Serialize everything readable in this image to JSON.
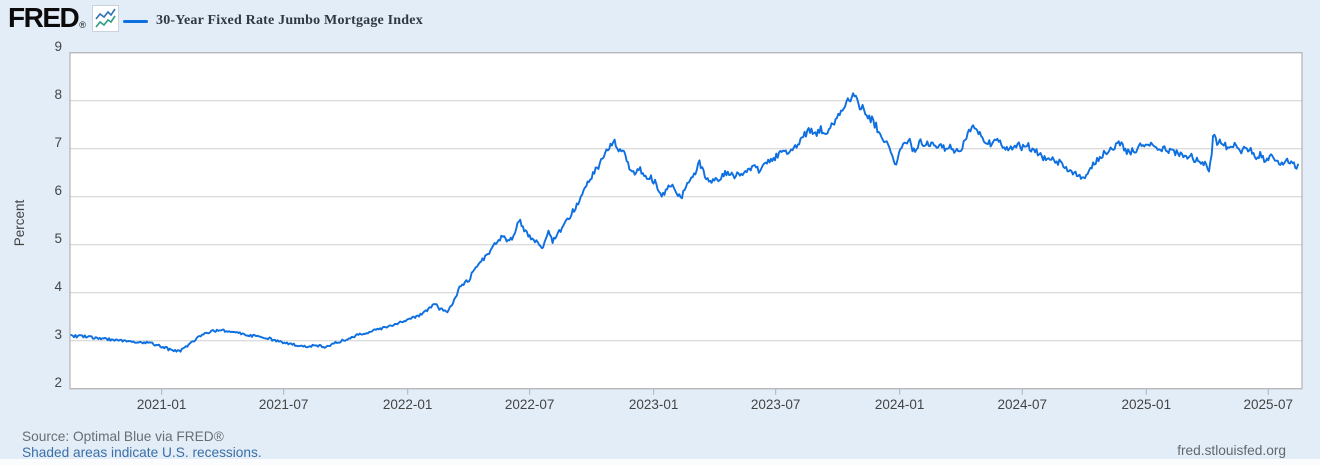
{
  "header": {
    "logo_text": "FRED",
    "logo_reg": "®",
    "legend_label": "30-Year Fixed Rate Jumbo Mortgage Index"
  },
  "footer": {
    "source": "Source: Optimal Blue via FRED®",
    "recession_note": "Shaded areas indicate U.S. recessions.",
    "site_link": "fred.stlouisfed.org"
  },
  "chart_data": {
    "type": "line",
    "title": "30-Year Fixed Rate Jumbo Mortgage Index",
    "ylabel": "Percent",
    "ylim": [
      2,
      9
    ],
    "yticks": [
      2,
      3,
      4,
      5,
      6,
      7,
      8,
      9
    ],
    "x_start": "2020-08-18",
    "x_end": "2025-08-20",
    "xticks": [
      "2021-01",
      "2021-07",
      "2022-01",
      "2022-07",
      "2023-01",
      "2023-07",
      "2024-01",
      "2024-07",
      "2025-01",
      "2025-07"
    ],
    "grid": "horizontal",
    "legend_position": "top-left",
    "colors": {
      "line": "#0e6fe0",
      "link": "#3a6fa8",
      "grid": "#cfcfcf",
      "frame": "#b3b3b3",
      "tick": "#a9bdd4",
      "logo_icon_blue": "#2e73b5",
      "logo_icon_green": "#2e9c86"
    },
    "series": [
      {
        "name": "30-Year Fixed Rate Jumbo Mortgage Index",
        "points": [
          [
            "2020-08-20",
            3.1
          ],
          [
            "2020-09-05",
            3.09
          ],
          [
            "2020-09-20",
            3.07
          ],
          [
            "2020-10-05",
            3.05
          ],
          [
            "2020-10-20",
            3.02
          ],
          [
            "2020-11-05",
            3.0
          ],
          [
            "2020-11-20",
            2.98
          ],
          [
            "2020-12-05",
            2.97
          ],
          [
            "2020-12-15",
            2.95
          ],
          [
            "2021-01-01",
            2.88
          ],
          [
            "2021-01-12",
            2.82
          ],
          [
            "2021-01-25",
            2.78
          ],
          [
            "2021-02-03",
            2.82
          ],
          [
            "2021-02-15",
            2.98
          ],
          [
            "2021-03-01",
            3.12
          ],
          [
            "2021-03-15",
            3.2
          ],
          [
            "2021-04-01",
            3.22
          ],
          [
            "2021-04-15",
            3.18
          ],
          [
            "2021-05-01",
            3.15
          ],
          [
            "2021-05-15",
            3.1
          ],
          [
            "2021-06-01",
            3.08
          ],
          [
            "2021-06-15",
            3.02
          ],
          [
            "2021-07-01",
            2.97
          ],
          [
            "2021-07-15",
            2.92
          ],
          [
            "2021-08-01",
            2.88
          ],
          [
            "2021-08-20",
            2.9
          ],
          [
            "2021-09-01",
            2.87
          ],
          [
            "2021-09-15",
            2.95
          ],
          [
            "2021-10-01",
            3.03
          ],
          [
            "2021-10-15",
            3.1
          ],
          [
            "2021-11-01",
            3.17
          ],
          [
            "2021-11-15",
            3.24
          ],
          [
            "2021-12-01",
            3.28
          ],
          [
            "2021-12-20",
            3.38
          ],
          [
            "2022-01-05",
            3.45
          ],
          [
            "2022-01-18",
            3.52
          ],
          [
            "2022-02-02",
            3.67
          ],
          [
            "2022-02-10",
            3.8
          ],
          [
            "2022-02-17",
            3.67
          ],
          [
            "2022-03-01",
            3.62
          ],
          [
            "2022-03-10",
            3.8
          ],
          [
            "2022-03-18",
            4.08
          ],
          [
            "2022-03-25",
            4.19
          ],
          [
            "2022-04-02",
            4.26
          ],
          [
            "2022-04-09",
            4.47
          ],
          [
            "2022-04-16",
            4.61
          ],
          [
            "2022-04-24",
            4.72
          ],
          [
            "2022-05-01",
            4.82
          ],
          [
            "2022-05-08",
            4.96
          ],
          [
            "2022-05-16",
            5.08
          ],
          [
            "2022-05-22",
            5.17
          ],
          [
            "2022-05-29",
            5.05
          ],
          [
            "2022-06-05",
            5.12
          ],
          [
            "2022-06-11",
            5.3
          ],
          [
            "2022-06-14",
            5.52
          ],
          [
            "2022-06-18",
            5.45
          ],
          [
            "2022-06-25",
            5.28
          ],
          [
            "2022-06-29",
            5.17
          ],
          [
            "2022-07-08",
            5.1
          ],
          [
            "2022-07-15",
            5.02
          ],
          [
            "2022-07-21",
            4.95
          ],
          [
            "2022-07-28",
            5.28
          ],
          [
            "2022-08-04",
            5.07
          ],
          [
            "2022-08-12",
            5.22
          ],
          [
            "2022-08-20",
            5.4
          ],
          [
            "2022-08-27",
            5.52
          ],
          [
            "2022-09-03",
            5.7
          ],
          [
            "2022-09-10",
            5.84
          ],
          [
            "2022-09-17",
            6.08
          ],
          [
            "2022-09-25",
            6.33
          ],
          [
            "2022-10-02",
            6.45
          ],
          [
            "2022-10-09",
            6.58
          ],
          [
            "2022-10-16",
            6.75
          ],
          [
            "2022-10-24",
            6.95
          ],
          [
            "2022-10-31",
            7.12
          ],
          [
            "2022-11-04",
            7.15
          ],
          [
            "2022-11-10",
            6.88
          ],
          [
            "2022-11-16",
            7.02
          ],
          [
            "2022-11-23",
            6.72
          ],
          [
            "2022-12-01",
            6.48
          ],
          [
            "2022-12-10",
            6.58
          ],
          [
            "2022-12-18",
            6.45
          ],
          [
            "2022-12-28",
            6.38
          ],
          [
            "2023-01-03",
            6.31
          ],
          [
            "2023-01-13",
            5.98
          ],
          [
            "2023-01-20",
            6.15
          ],
          [
            "2023-01-28",
            6.24
          ],
          [
            "2023-02-04",
            6.1
          ],
          [
            "2023-02-11",
            6.0
          ],
          [
            "2023-02-18",
            6.2
          ],
          [
            "2023-02-25",
            6.4
          ],
          [
            "2023-03-05",
            6.55
          ],
          [
            "2023-03-10",
            6.7
          ],
          [
            "2023-03-15",
            6.52
          ],
          [
            "2023-03-22",
            6.38
          ],
          [
            "2023-04-01",
            6.33
          ],
          [
            "2023-04-10",
            6.42
          ],
          [
            "2023-04-20",
            6.5
          ],
          [
            "2023-05-01",
            6.42
          ],
          [
            "2023-05-10",
            6.48
          ],
          [
            "2023-05-20",
            6.55
          ],
          [
            "2023-06-01",
            6.63
          ],
          [
            "2023-06-08",
            6.52
          ],
          [
            "2023-06-16",
            6.7
          ],
          [
            "2023-06-25",
            6.75
          ],
          [
            "2023-07-03",
            6.85
          ],
          [
            "2023-07-12",
            6.95
          ],
          [
            "2023-07-20",
            6.88
          ],
          [
            "2023-07-28",
            7.02
          ],
          [
            "2023-08-05",
            7.12
          ],
          [
            "2023-08-14",
            7.3
          ],
          [
            "2023-08-22",
            7.38
          ],
          [
            "2023-08-29",
            7.32
          ],
          [
            "2023-09-06",
            7.4
          ],
          [
            "2023-09-14",
            7.35
          ],
          [
            "2023-09-22",
            7.5
          ],
          [
            "2023-10-01",
            7.62
          ],
          [
            "2023-10-08",
            7.78
          ],
          [
            "2023-10-15",
            7.95
          ],
          [
            "2023-10-22",
            8.12
          ],
          [
            "2023-10-28",
            8.05
          ],
          [
            "2023-11-02",
            7.92
          ],
          [
            "2023-11-08",
            7.82
          ],
          [
            "2023-11-15",
            7.7
          ],
          [
            "2023-11-22",
            7.58
          ],
          [
            "2023-12-01",
            7.38
          ],
          [
            "2023-12-10",
            7.18
          ],
          [
            "2023-12-18",
            7.02
          ],
          [
            "2023-12-27",
            6.62
          ],
          [
            "2024-01-03",
            7.05
          ],
          [
            "2024-01-08",
            7.12
          ],
          [
            "2024-01-15",
            7.18
          ],
          [
            "2024-01-22",
            6.96
          ],
          [
            "2024-02-01",
            7.15
          ],
          [
            "2024-02-08",
            7.05
          ],
          [
            "2024-02-15",
            7.12
          ],
          [
            "2024-02-22",
            7.02
          ],
          [
            "2024-03-01",
            7.1
          ],
          [
            "2024-03-08",
            6.98
          ],
          [
            "2024-03-15",
            7.05
          ],
          [
            "2024-03-22",
            6.95
          ],
          [
            "2024-03-29",
            6.92
          ],
          [
            "2024-04-05",
            7.1
          ],
          [
            "2024-04-12",
            7.3
          ],
          [
            "2024-04-19",
            7.48
          ],
          [
            "2024-04-26",
            7.35
          ],
          [
            "2024-05-03",
            7.25
          ],
          [
            "2024-05-10",
            7.15
          ],
          [
            "2024-05-17",
            7.1
          ],
          [
            "2024-05-24",
            7.18
          ],
          [
            "2024-06-01",
            7.05
          ],
          [
            "2024-06-08",
            6.98
          ],
          [
            "2024-06-15",
            7.05
          ],
          [
            "2024-06-22",
            7.1
          ],
          [
            "2024-07-01",
            7.02
          ],
          [
            "2024-07-10",
            7.05
          ],
          [
            "2024-07-18",
            6.95
          ],
          [
            "2024-07-26",
            6.92
          ],
          [
            "2024-08-02",
            6.78
          ],
          [
            "2024-08-09",
            6.86
          ],
          [
            "2024-08-16",
            6.8
          ],
          [
            "2024-08-24",
            6.72
          ],
          [
            "2024-09-01",
            6.62
          ],
          [
            "2024-09-08",
            6.55
          ],
          [
            "2024-09-15",
            6.48
          ],
          [
            "2024-09-22",
            6.42
          ],
          [
            "2024-09-30",
            6.38
          ],
          [
            "2024-10-07",
            6.55
          ],
          [
            "2024-10-14",
            6.68
          ],
          [
            "2024-10-21",
            6.8
          ],
          [
            "2024-10-28",
            6.88
          ],
          [
            "2024-11-05",
            6.95
          ],
          [
            "2024-11-12",
            7.02
          ],
          [
            "2024-11-19",
            7.1
          ],
          [
            "2024-11-26",
            7.05
          ],
          [
            "2024-12-03",
            6.9
          ],
          [
            "2024-12-10",
            6.95
          ],
          [
            "2024-12-17",
            7.0
          ],
          [
            "2024-12-24",
            7.05
          ],
          [
            "2025-01-02",
            7.08
          ],
          [
            "2025-01-10",
            7.12
          ],
          [
            "2025-01-17",
            7.05
          ],
          [
            "2025-01-24",
            7.0
          ],
          [
            "2025-02-01",
            6.97
          ],
          [
            "2025-02-10",
            6.92
          ],
          [
            "2025-02-18",
            6.88
          ],
          [
            "2025-02-26",
            6.8
          ],
          [
            "2025-03-06",
            6.85
          ],
          [
            "2025-03-14",
            6.78
          ],
          [
            "2025-03-22",
            6.75
          ],
          [
            "2025-03-28",
            6.7
          ],
          [
            "2025-04-03",
            6.52
          ],
          [
            "2025-04-08",
            6.85
          ],
          [
            "2025-04-11",
            7.35
          ],
          [
            "2025-04-16",
            7.12
          ],
          [
            "2025-04-23",
            7.15
          ],
          [
            "2025-04-30",
            7.05
          ],
          [
            "2025-05-08",
            7.0
          ],
          [
            "2025-05-15",
            7.08
          ],
          [
            "2025-05-22",
            6.95
          ],
          [
            "2025-05-29",
            7.0
          ],
          [
            "2025-06-05",
            6.95
          ],
          [
            "2025-06-12",
            6.85
          ],
          [
            "2025-06-19",
            6.88
          ],
          [
            "2025-06-26",
            6.78
          ],
          [
            "2025-07-03",
            6.85
          ],
          [
            "2025-07-10",
            6.8
          ],
          [
            "2025-07-17",
            6.74
          ],
          [
            "2025-07-24",
            6.7
          ],
          [
            "2025-07-31",
            6.74
          ],
          [
            "2025-08-07",
            6.68
          ],
          [
            "2025-08-14",
            6.64
          ]
        ]
      }
    ]
  }
}
